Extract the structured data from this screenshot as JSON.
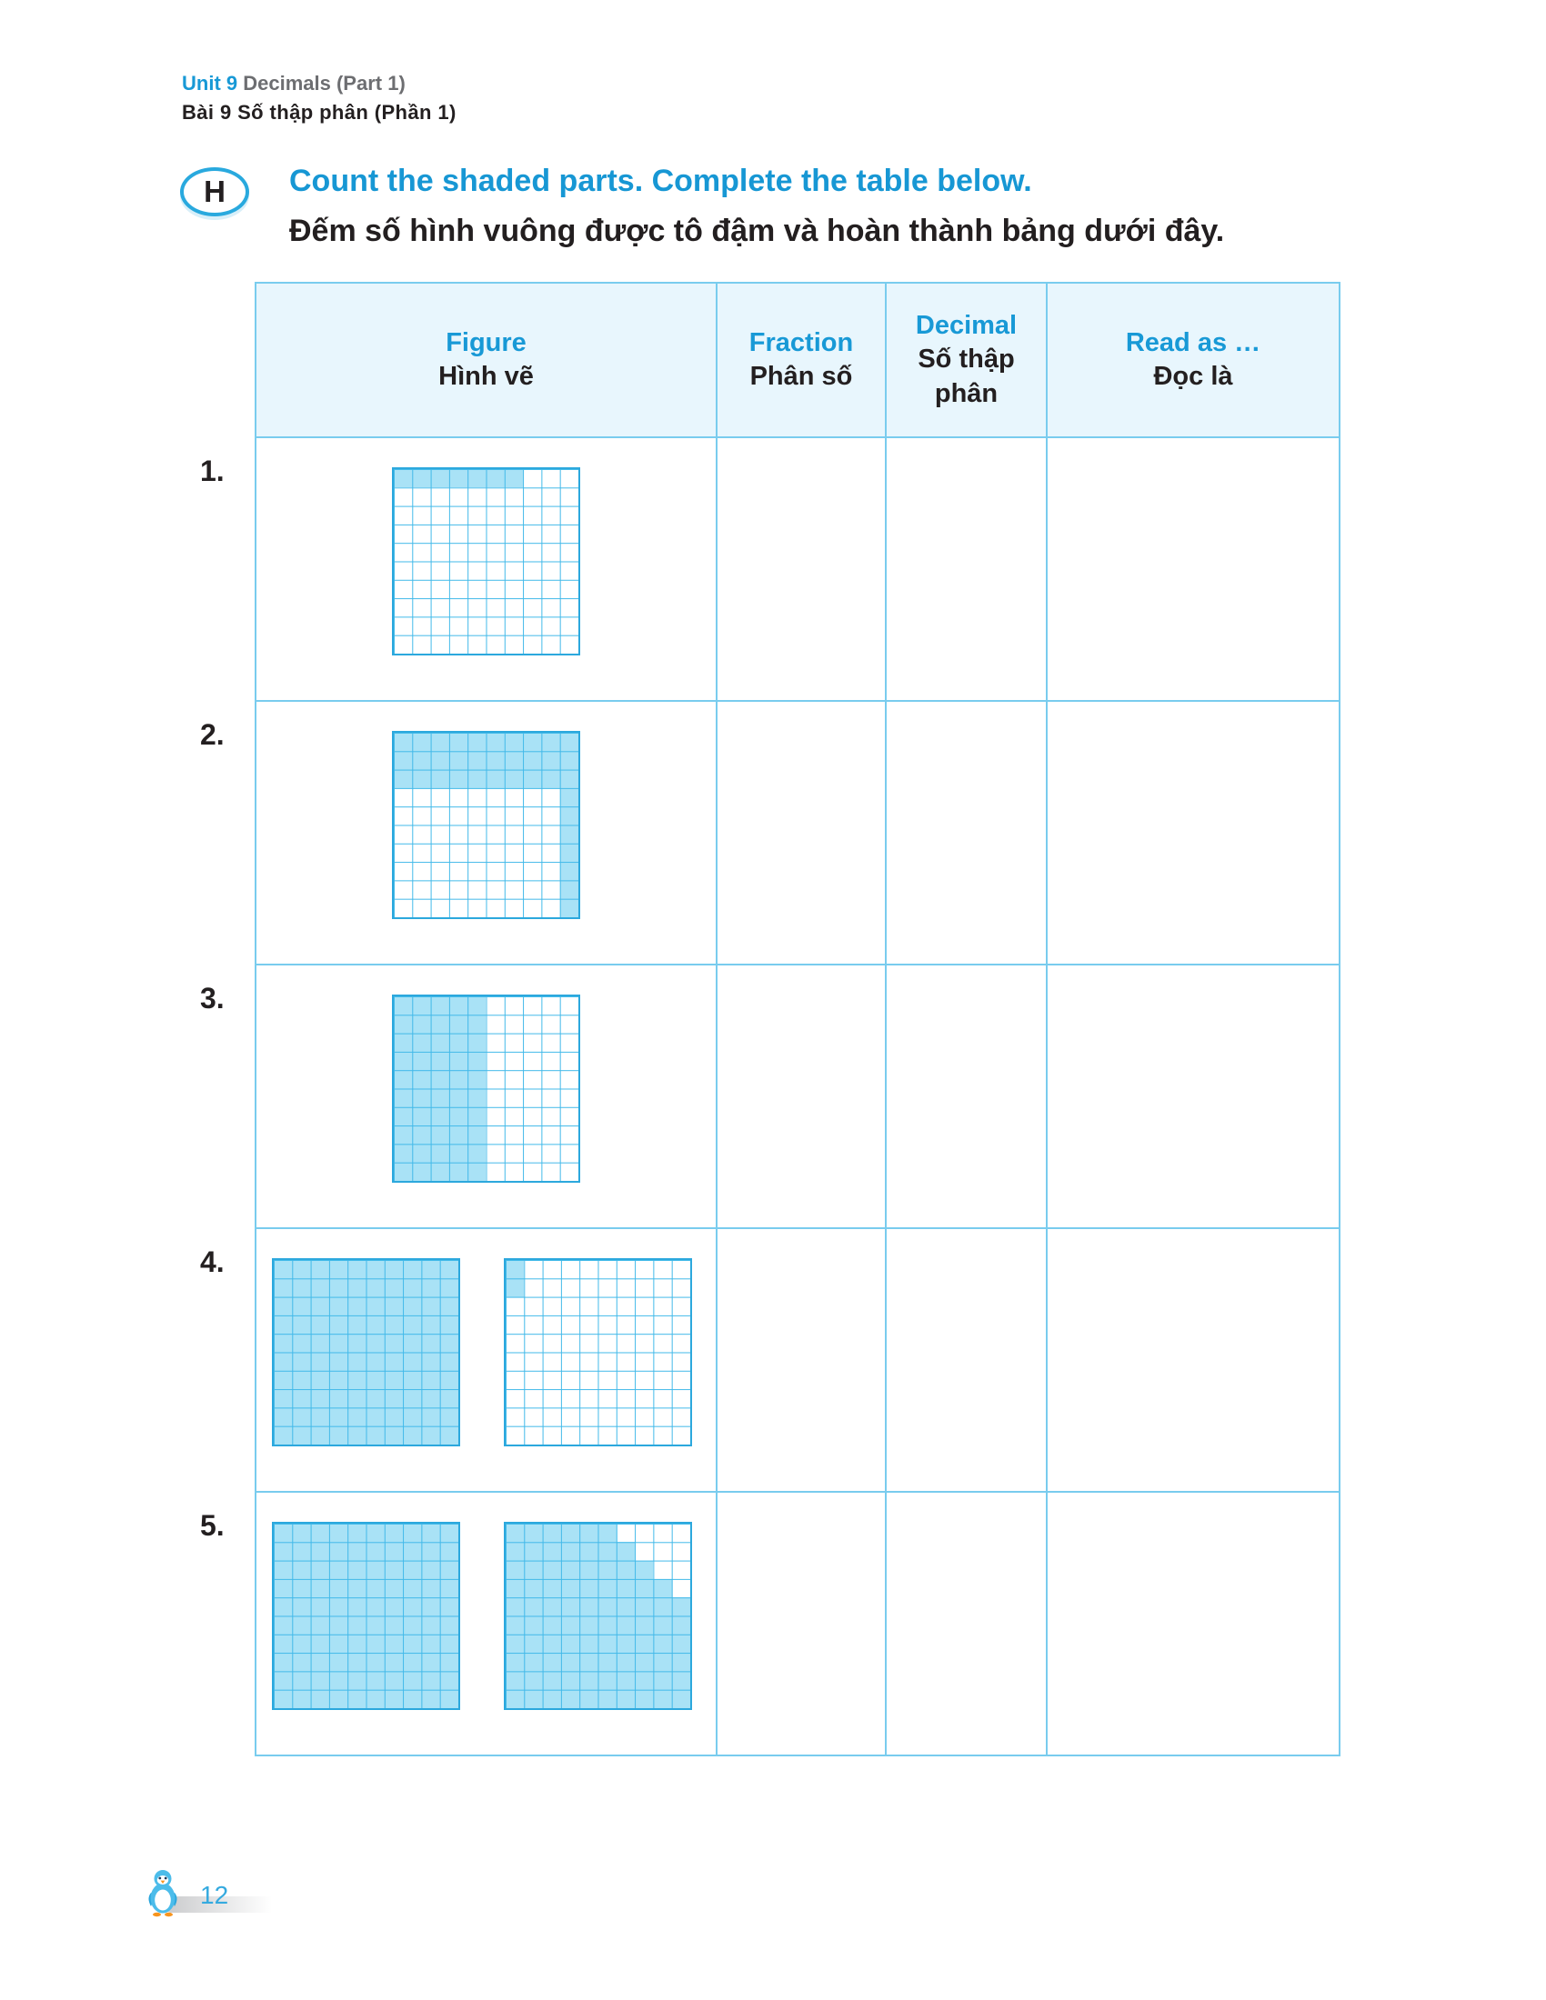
{
  "header": {
    "unit_label": "Unit 9",
    "unit_title": "Decimals (Part 1)",
    "lesson_line": "Bài 9 Số thập phân (Phần 1)"
  },
  "exercise": {
    "badge": "H",
    "instruction_en": "Count the shaded parts. Complete the table below.",
    "instruction_vi": "Đếm số hình vuông được tô đậm và hoàn thành bảng dưới đây."
  },
  "table": {
    "columns": [
      {
        "en": "Figure",
        "vi": "Hình vẽ"
      },
      {
        "en": "Fraction",
        "vi": "Phân số"
      },
      {
        "en": "Decimal",
        "vi": "Số thập phân"
      },
      {
        "en": "Read as …",
        "vi": "Đọc là"
      }
    ],
    "rows": [
      {
        "number": "1.",
        "fraction": "",
        "decimal": "",
        "read_as": "",
        "grids": [
          {
            "rows": 10,
            "cols": 10,
            "base": "empty",
            "shaded_ranges": [
              {
                "r1": 1,
                "r2": 1,
                "c1": 1,
                "c2": 7
              }
            ],
            "shaded_count": 7
          }
        ]
      },
      {
        "number": "2.",
        "fraction": "",
        "decimal": "",
        "read_as": "",
        "grids": [
          {
            "rows": 10,
            "cols": 10,
            "base": "empty",
            "shaded_ranges": [
              {
                "r1": 1,
                "r2": 3,
                "c1": 1,
                "c2": 10
              },
              {
                "r1": 4,
                "r2": 10,
                "c1": 10,
                "c2": 10
              }
            ],
            "shaded_count": 37
          }
        ]
      },
      {
        "number": "3.",
        "fraction": "",
        "decimal": "",
        "read_as": "",
        "grids": [
          {
            "rows": 10,
            "cols": 10,
            "base": "empty",
            "shaded_ranges": [
              {
                "r1": 1,
                "r2": 10,
                "c1": 1,
                "c2": 5
              }
            ],
            "shaded_count": 50
          }
        ]
      },
      {
        "number": "4.",
        "fraction": "",
        "decimal": "",
        "read_as": "",
        "grids": [
          {
            "rows": 10,
            "cols": 10,
            "base": "full",
            "shaded_count": 100
          },
          {
            "rows": 10,
            "cols": 10,
            "base": "empty",
            "shaded_ranges": [
              {
                "r1": 1,
                "r2": 2,
                "c1": 1,
                "c2": 1
              }
            ],
            "shaded_count": 2
          }
        ]
      },
      {
        "number": "5.",
        "fraction": "",
        "decimal": "",
        "read_as": "",
        "grids": [
          {
            "rows": 10,
            "cols": 10,
            "base": "full",
            "shaded_count": 100
          },
          {
            "rows": 10,
            "cols": 10,
            "base": "full",
            "unshaded_ranges": [
              {
                "r1": 1,
                "r2": 1,
                "c1": 7,
                "c2": 10
              },
              {
                "r1": 2,
                "r2": 2,
                "c1": 8,
                "c2": 10
              },
              {
                "r1": 3,
                "r2": 3,
                "c1": 9,
                "c2": 10
              },
              {
                "r1": 4,
                "r2": 4,
                "c1": 10,
                "c2": 10
              }
            ],
            "shaded_count": 90
          }
        ]
      }
    ]
  },
  "footer": {
    "page_number": "12"
  },
  "colors": {
    "accent_blue": "#1899d6",
    "table_border": "#79ccee",
    "header_bg": "#e8f6fd",
    "grid_line": "#41b9e9",
    "grid_border": "#2ca8dd",
    "grid_fill": "#a9e2f6",
    "text_dark": "#231f20",
    "text_gray": "#6d6e71"
  }
}
